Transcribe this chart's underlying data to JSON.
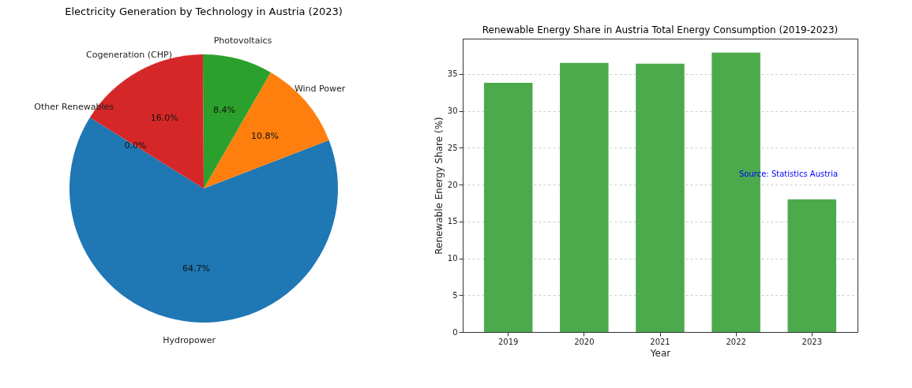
{
  "chart_data": [
    {
      "type": "pie",
      "title": "Electricity Generation by Technology in Austria (2023)",
      "categories": [
        "Hydropower",
        "Wind Power",
        "Photovoltaics",
        "Cogeneration (CHP)",
        "Other Renewables"
      ],
      "values": [
        64.7,
        10.8,
        8.4,
        16.0,
        0.0
      ],
      "value_labels": [
        "64.7%",
        "10.8%",
        "8.4%",
        "16.0%",
        "0.0%"
      ],
      "colors": [
        "#1f77b4",
        "#ff7f0e",
        "#2ca02c",
        "#d62728",
        "#9467bd"
      ],
      "legend": false
    },
    {
      "type": "bar",
      "title": "Renewable Energy Share in Austria Total Energy Consumption (2019-2023)",
      "xlabel": "Year",
      "ylabel": "Renewable Energy Share (%)",
      "categories": [
        "2019",
        "2020",
        "2021",
        "2022",
        "2023"
      ],
      "values": [
        33.8,
        36.5,
        36.4,
        37.9,
        18.0
      ],
      "color": "#4caa4c",
      "ylim": [
        0,
        39.8
      ],
      "yticks": [
        0,
        5,
        10,
        15,
        20,
        25,
        30,
        35
      ],
      "grid": "y",
      "annotations": [
        "Source: Statistics Austria"
      ]
    }
  ]
}
